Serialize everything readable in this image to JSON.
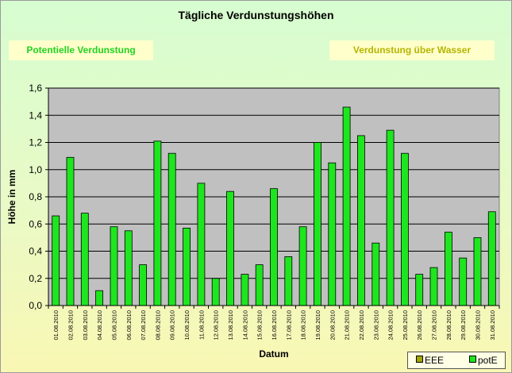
{
  "chart_data": {
    "type": "bar",
    "title": "Tägliche Verdunstungshöhen",
    "xlabel": "Datum",
    "ylabel": "Höhe in mm",
    "ylim": [
      0,
      1.6
    ],
    "yticks": [
      "0,0",
      "0,2",
      "0,4",
      "0,6",
      "0,8",
      "1,0",
      "1,2",
      "1,4",
      "1,6"
    ],
    "grid": true,
    "legend_position": "bottom-right",
    "categories": [
      "01.08.2010",
      "02.08.2010",
      "03.08.2010",
      "04.08.2010",
      "05.08.2010",
      "06.08.2010",
      "07.08.2010",
      "08.08.2010",
      "09.08.2010",
      "10.08.2010",
      "11.08.2010",
      "12.08.2010",
      "13.08.2010",
      "14.08.2010",
      "15.08.2010",
      "16.08.2010",
      "17.08.2010",
      "18.08.2010",
      "19.08.2010",
      "20.08.2010",
      "21.08.2010",
      "22.08.2010",
      "23.08.2010",
      "24.08.2010",
      "25.08.2010",
      "26.08.2010",
      "27.08.2010",
      "28.08.2010",
      "29.08.2010",
      "30.08.2010",
      "31.08.2010"
    ],
    "series": [
      {
        "name": "EEE",
        "color": "#a6a600",
        "values": [
          0,
          0,
          0,
          0,
          0,
          0,
          0,
          0,
          0,
          0,
          0,
          0,
          0,
          0,
          0,
          0,
          0,
          0,
          0,
          0,
          0,
          0,
          0,
          0,
          0,
          0,
          0,
          0,
          0,
          0,
          0
        ]
      },
      {
        "name": "potE",
        "color": "#1ee61e",
        "values": [
          0.66,
          1.09,
          0.68,
          0.11,
          0.58,
          0.55,
          0.3,
          1.21,
          1.12,
          0.57,
          0.9,
          0.2,
          0.84,
          0.23,
          0.3,
          0.86,
          0.36,
          0.58,
          1.2,
          1.05,
          1.46,
          1.25,
          0.46,
          1.29,
          1.12,
          0.23,
          0.28,
          0.54,
          0.35,
          0.5,
          0.69
        ]
      }
    ]
  },
  "labels": {
    "left_box": "Potentielle Verdunstung",
    "right_box": "Verdunstung über Wasser"
  },
  "colors": {
    "plot_background": "#c0c0c0",
    "bar_stroke": "#000000"
  }
}
